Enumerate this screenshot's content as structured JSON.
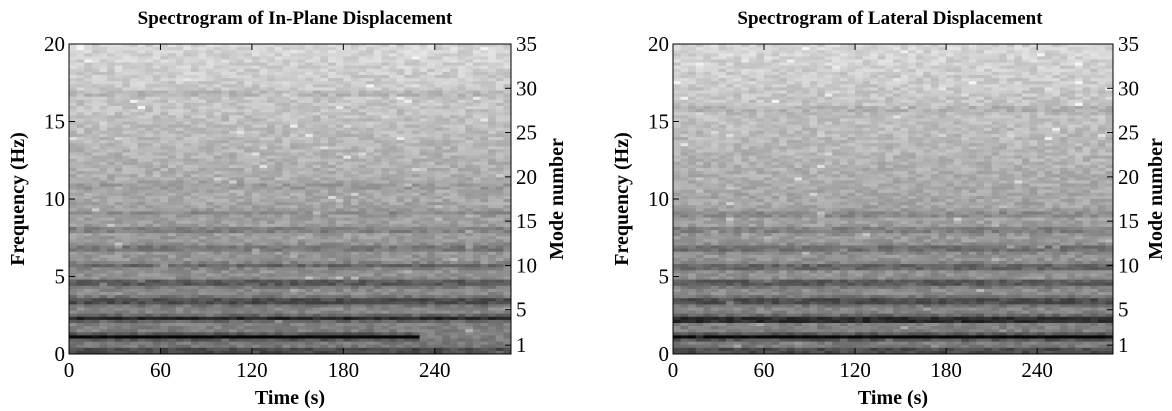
{
  "chart_data": [
    {
      "type": "heatmap",
      "title": "Spectrogram of In-Plane Displacement",
      "xlabel": "Time (s)",
      "ylabel": "Frequency (Hz)",
      "y2label": "Mode number",
      "xlim": [
        0,
        290
      ],
      "ylim": [
        0,
        20
      ],
      "xticks": [
        0,
        60,
        120,
        180,
        240
      ],
      "yticks": [
        0,
        5,
        10,
        15,
        20
      ],
      "y2ticks": [
        1,
        5,
        10,
        15,
        20,
        25,
        30,
        35
      ],
      "y2_per_hz": 1.75,
      "colormap": "gray",
      "dominant_bands_hz": [
        {
          "f": 1.12,
          "strength": 0.95,
          "t_end": 228
        },
        {
          "f": 2.28,
          "strength": 0.7
        },
        {
          "f": 3.4,
          "strength": 0.45
        },
        {
          "f": 4.55,
          "strength": 0.4
        },
        {
          "f": 5.7,
          "strength": 0.35
        },
        {
          "f": 6.85,
          "strength": 0.25
        },
        {
          "f": 8.0,
          "strength": 0.22
        },
        {
          "f": 9.1,
          "strength": 0.18
        },
        {
          "f": 10.8,
          "strength": 0.12
        },
        {
          "f": 16.8,
          "strength": 0.12
        }
      ]
    },
    {
      "type": "heatmap",
      "title": "Spectrogram of Lateral Displacement",
      "xlabel": "Time (s)",
      "ylabel": "Frequency (Hz)",
      "y2label": "Mode number",
      "xlim": [
        0,
        290
      ],
      "ylim": [
        0,
        20
      ],
      "xticks": [
        0,
        60,
        120,
        180,
        240
      ],
      "yticks": [
        0,
        5,
        10,
        15,
        20
      ],
      "y2ticks": [
        1,
        5,
        10,
        15,
        20,
        25,
        30,
        35
      ],
      "y2_per_hz": 1.75,
      "colormap": "gray",
      "dominant_bands_hz": [
        {
          "f": 1.1,
          "strength": 0.95
        },
        {
          "f": 2.25,
          "strength": 0.65
        },
        {
          "f": 3.4,
          "strength": 0.45
        },
        {
          "f": 4.55,
          "strength": 0.4
        },
        {
          "f": 5.65,
          "strength": 0.35
        },
        {
          "f": 6.8,
          "strength": 0.3
        },
        {
          "f": 7.95,
          "strength": 0.22
        },
        {
          "f": 9.05,
          "strength": 0.18
        },
        {
          "f": 15.75,
          "strength": 0.12
        }
      ]
    }
  ]
}
